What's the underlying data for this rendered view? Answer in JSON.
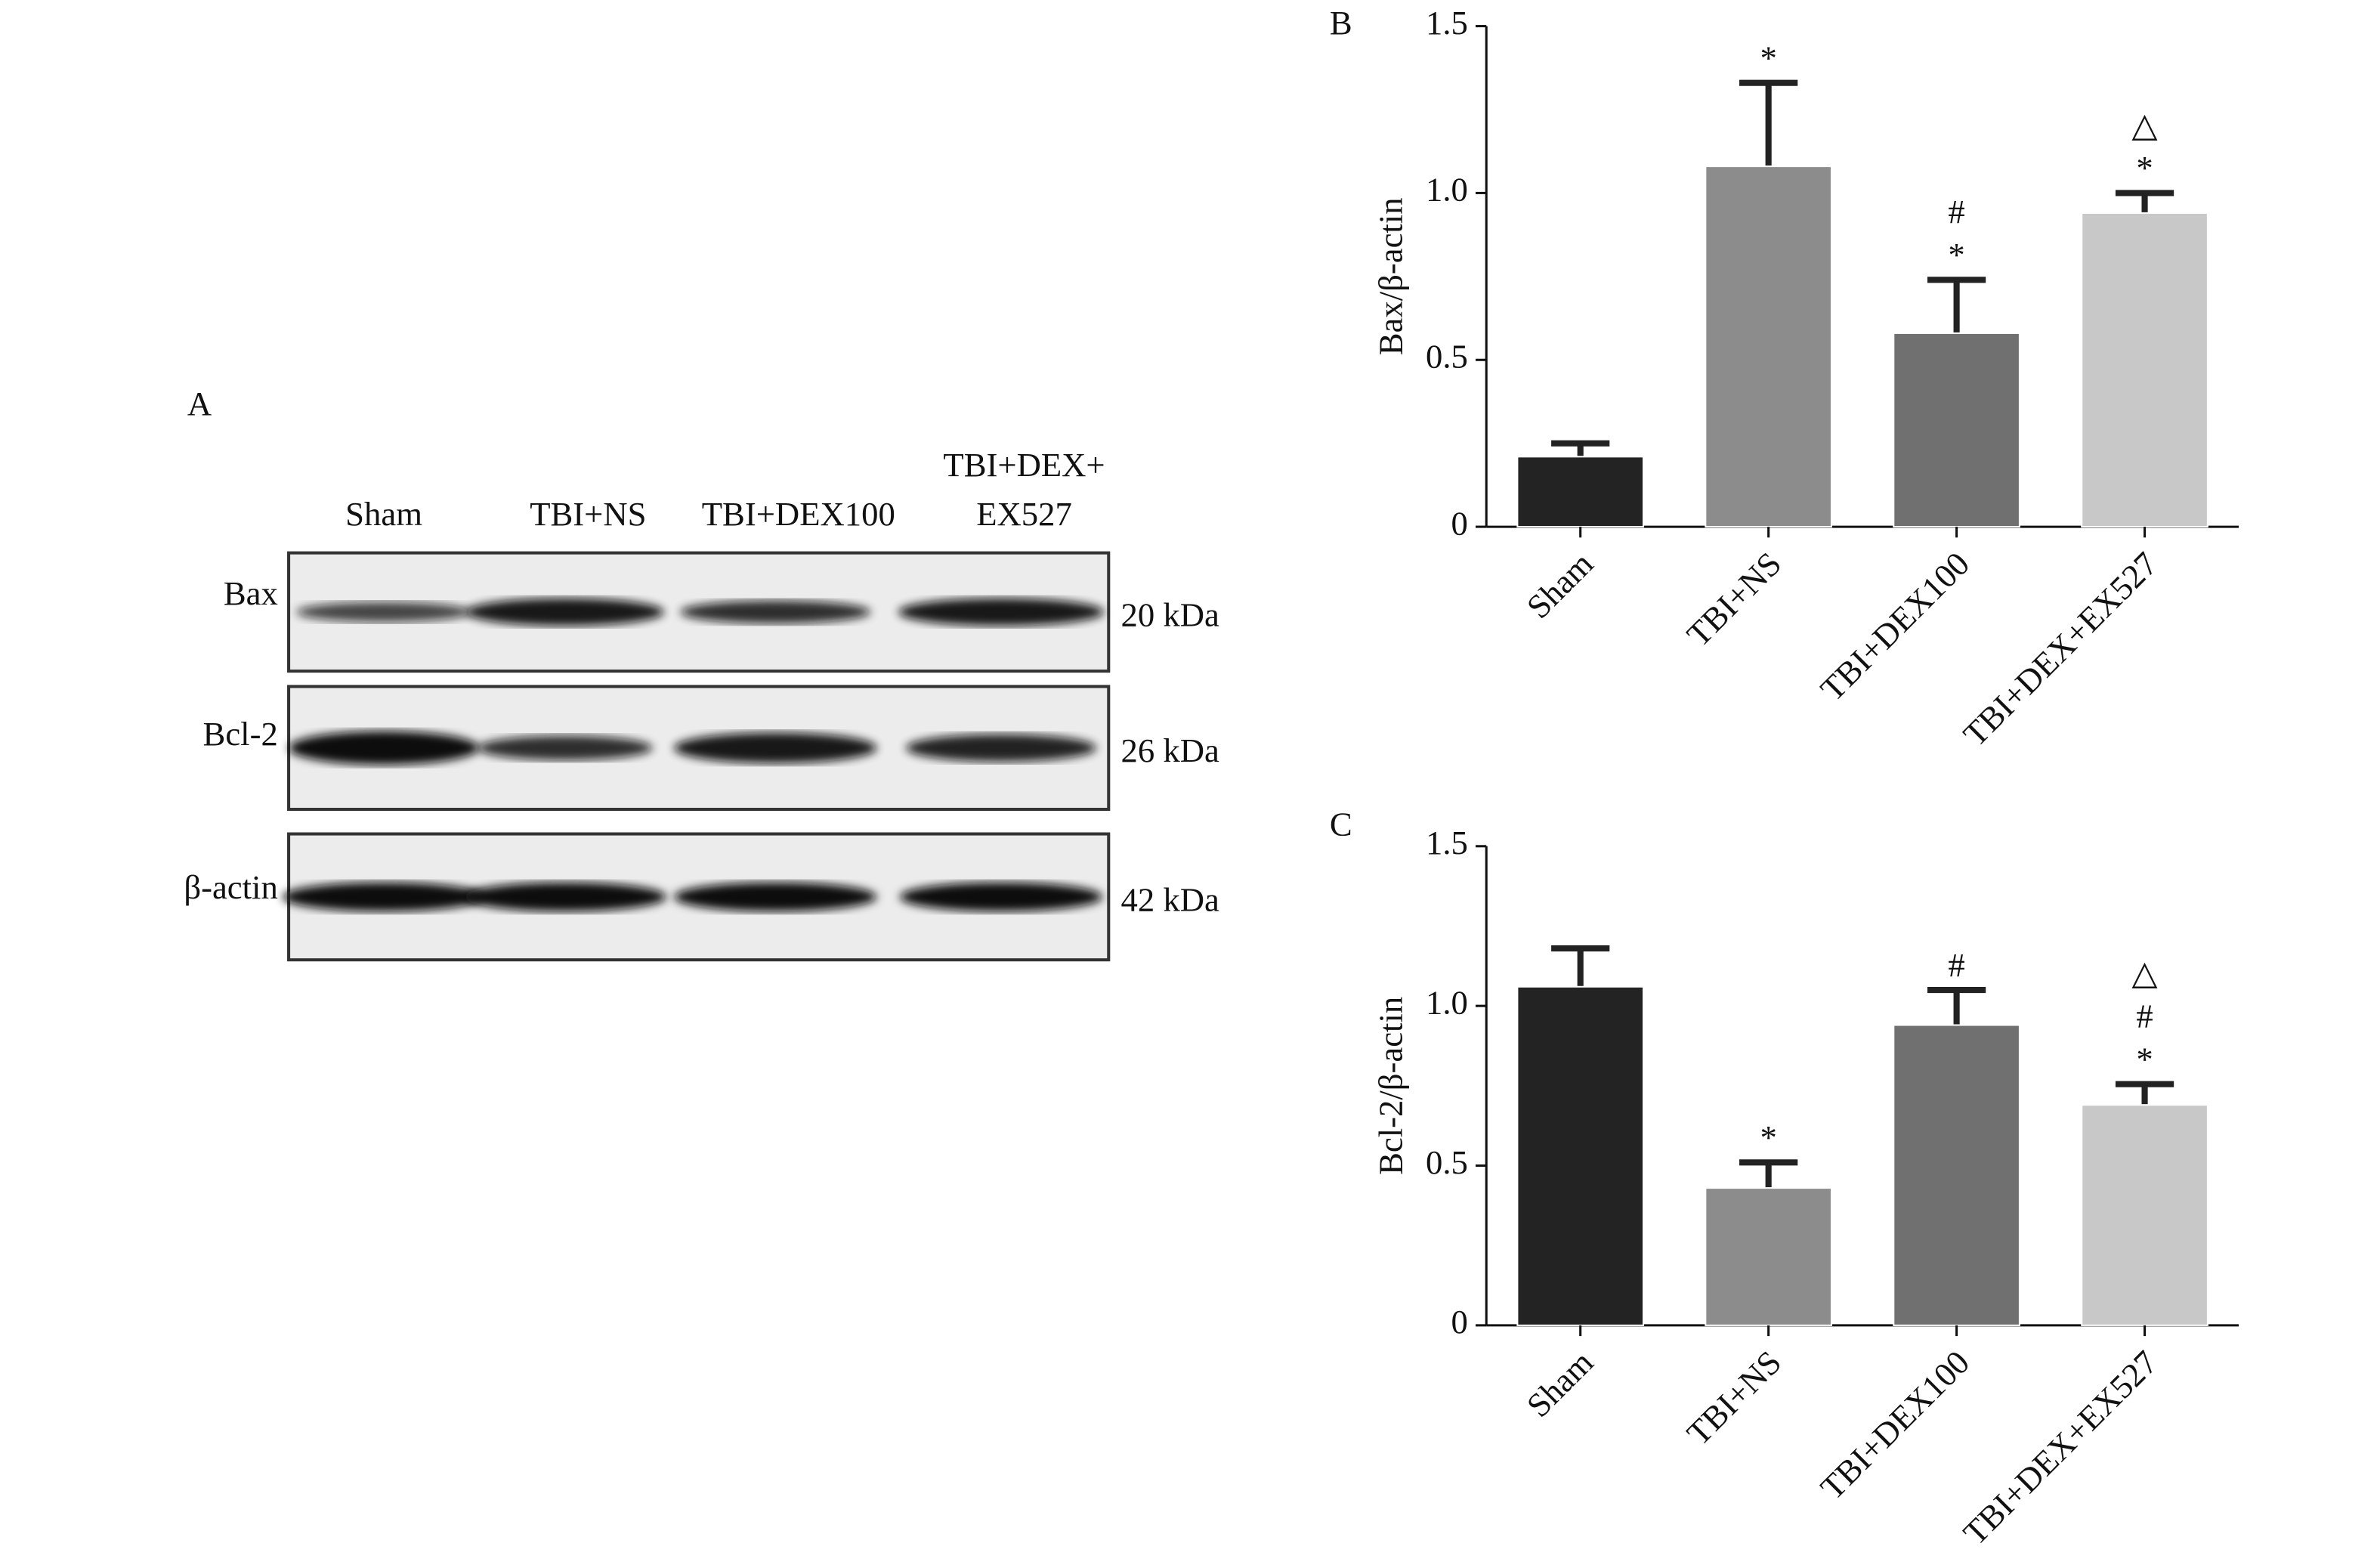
{
  "panel_a": {
    "label": "A",
    "lanes": [
      [
        "Sham"
      ],
      [
        "TBI+NS"
      ],
      [
        "TBI+DEX100"
      ],
      [
        "TBI+DEX+",
        "EX527"
      ]
    ],
    "rows": [
      {
        "protein": "Bax",
        "size": "20 kDa"
      },
      {
        "protein": "Bcl-2",
        "size": "26 kDa"
      },
      {
        "protein": "β-actin",
        "size": "42 kDa"
      }
    ]
  },
  "chart_data": [
    {
      "type": "bar",
      "panel_label": "B",
      "y_label": "Bax/β-actin",
      "categories": [
        "Sham",
        "TBI+NS",
        "TBI+DEX100",
        "TBI+DEX+EX527"
      ],
      "values": [
        0.21,
        1.08,
        0.58,
        0.94
      ],
      "errors": [
        0.04,
        0.25,
        0.16,
        0.06
      ],
      "colors": [
        "#232323",
        "#8c8c8c",
        "#707070",
        "#c8c8c8"
      ],
      "annotations": [
        [],
        [
          "*"
        ],
        [
          "#",
          "*"
        ],
        [
          "△",
          "*"
        ]
      ],
      "ylim": [
        0,
        1.5
      ],
      "yticks": [
        0,
        0.5,
        {
          "value": 1,
          "label": "1.0"
        },
        1.5
      ]
    },
    {
      "type": "bar",
      "panel_label": "C",
      "y_label": "Bcl-2/β-actin",
      "categories": [
        "Sham",
        "TBI+NS",
        "TBI+DEX100",
        "TBI+DEX+EX527"
      ],
      "values": [
        1.06,
        0.43,
        0.94,
        0.69
      ],
      "errors": [
        0.12,
        0.08,
        0.11,
        0.065
      ],
      "colors": [
        "#232323",
        "#8c8c8c",
        "#707070",
        "#c8c8c8"
      ],
      "annotations": [
        [],
        [
          "*"
        ],
        [
          "#"
        ],
        [
          "△",
          "#",
          "*"
        ]
      ],
      "ylim": [
        0,
        1.5
      ],
      "yticks": [
        0,
        0.5,
        {
          "value": 1,
          "label": "1.0"
        },
        1.5
      ]
    }
  ]
}
